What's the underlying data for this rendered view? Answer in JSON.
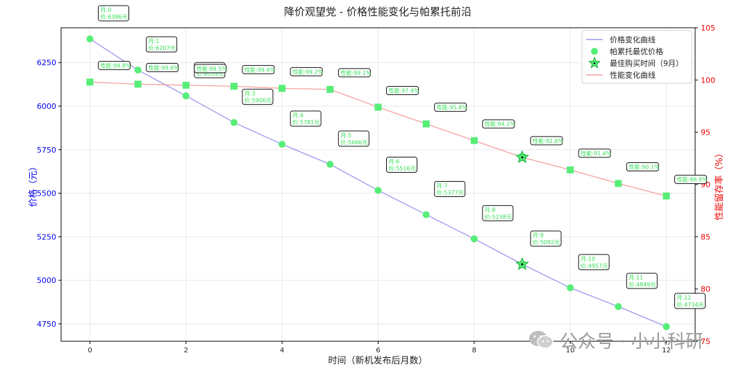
{
  "chart_data": {
    "type": "line",
    "title": "降价观望党 - 价格性能变化与帕累托前沿",
    "xlabel": "时间（新机发布后月数）",
    "ylabel_left": "价格（元）",
    "ylabel_right": "性能留存率（%）",
    "x": [
      0,
      1,
      2,
      3,
      4,
      5,
      6,
      7,
      8,
      9,
      10,
      11,
      12
    ],
    "xlim": [
      -0.6,
      12.6
    ],
    "ylim_left": [
      4650,
      6450
    ],
    "ylim_right": [
      75,
      105
    ],
    "xticks": [
      0,
      2,
      4,
      6,
      8,
      10,
      12
    ],
    "yticks_left": [
      4750,
      5000,
      5250,
      5500,
      5750,
      6000,
      6250
    ],
    "yticks_right": [
      75,
      80,
      85,
      90,
      95,
      100,
      105
    ],
    "grid": true,
    "legend_position": "top-right",
    "series": [
      {
        "name": "价格变化曲线",
        "axis": "left",
        "values": [
          6386,
          6207,
          6059,
          5906,
          5781,
          5666,
          5516,
          5377,
          5238,
          5092,
          4957,
          4849,
          4734
        ],
        "color": "#9999ee"
      },
      {
        "name": "性能变化曲线",
        "axis": "right",
        "values": [
          99.8,
          99.6,
          99.5,
          99.4,
          99.2,
          99.1,
          97.4,
          95.8,
          94.2,
          92.6,
          91.4,
          90.1,
          88.9
        ],
        "color": "#f4a0a0"
      }
    ],
    "pareto_series_name": "帕累托最优价格",
    "best_time_name": "最佳购买时间（9月）",
    "best_month": 9,
    "marker_color": "#55ee77",
    "price_labels": [
      "月:0\n价:6386元",
      "月:1\n价:6207元",
      "月:2\n价:6059元",
      "月:3\n价:5906元",
      "月:4\n价:5781元",
      "月:5\n价:5666元",
      "月:6\n价:5516元",
      "月:7\n价:5377元",
      "月:8\n价:5238元",
      "月:9\n价:5092元",
      "月:10\n价:4957元",
      "月:11\n价:4849元",
      "月:12\n价:4734元"
    ],
    "perf_labels": [
      "性能:99.8%",
      "性能:99.6%",
      "性能:99.5%",
      "性能:99.4%",
      "性能:99.2%",
      "性能:99.1%",
      "性能:97.4%",
      "性能:95.8%",
      "性能:94.2%",
      "性能:92.6%",
      "性能:91.4%",
      "性能:90.1%",
      "性能:88.9%"
    ]
  },
  "watermark": {
    "text": "公众号 · 小小科研",
    "icon": "wechat-icon"
  }
}
